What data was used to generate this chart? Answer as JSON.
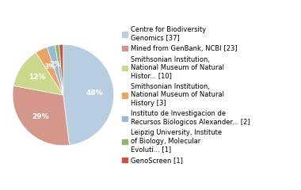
{
  "labels": [
    "Centre for Biodiversity\nGenomics [37]",
    "Mined from GenBank, NCBI [23]",
    "Smithsonian Institution,\nNational Museum of Natural\nHistor... [10]",
    "Smithsonian Institution,\nNational Museum of Natural\nHistory [3]",
    "Instituto de Investigacion de\nRecursos Biologicos Alexander... [2]",
    "Leipzig University, Institute\nof Biology, Molecular\nEvoluti... [1]",
    "GenoScreen [1]"
  ],
  "values": [
    37,
    23,
    10,
    3,
    2,
    1,
    1
  ],
  "colors": [
    "#b8cde0",
    "#d4978c",
    "#ccd98c",
    "#e8a464",
    "#9ab8d4",
    "#8ab86c",
    "#cc5244"
  ],
  "figsize": [
    3.8,
    2.4
  ],
  "dpi": 100,
  "startangle": 90,
  "legend_fontsize": 6.0,
  "pct_fontsize": 6.5
}
